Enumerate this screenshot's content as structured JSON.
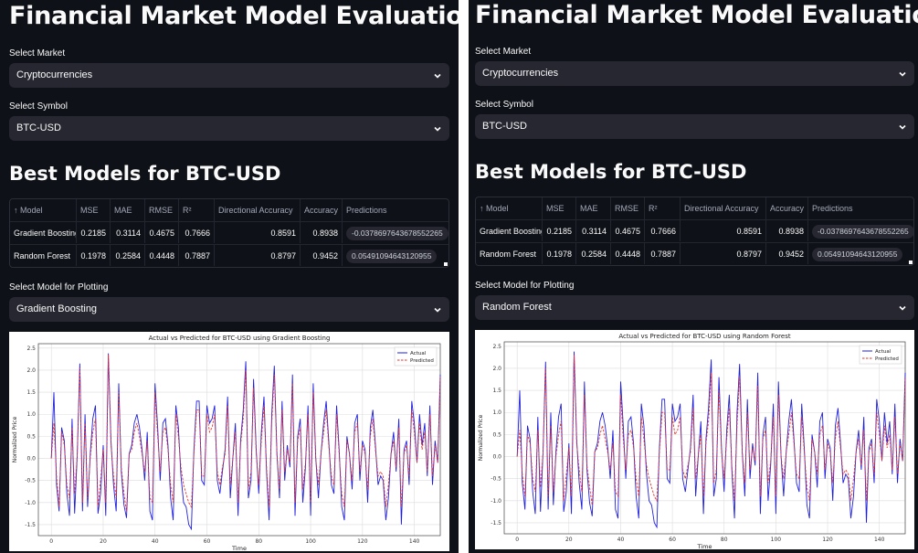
{
  "panels": [
    {
      "title": "Financial Market Model Evaluation",
      "market_label": "Select Market",
      "market_value": "Cryptocurrencies",
      "symbol_label": "Select Symbol",
      "symbol_value": "BTC-USD",
      "best_models_heading": "Best Models for BTC-USD",
      "table": {
        "sort_icon": "arrow-up",
        "columns": [
          "Model",
          "MSE",
          "MAE",
          "RMSE",
          "R²",
          "Directional Accuracy",
          "Accuracy",
          "Predictions"
        ],
        "rows": [
          [
            "Gradient Boosting",
            "0.2185",
            "0.3114",
            "0.4675",
            "0.7666",
            "0.8591",
            "0.8938",
            "-0.0378697643678552265"
          ],
          [
            "Random Forest",
            "0.1978",
            "0.2584",
            "0.4448",
            "0.7887",
            "0.8797",
            "0.9452",
            "0.05491094643120955"
          ]
        ]
      },
      "plot_model_label": "Select Model for Plotting",
      "plot_model_value": "Gradient Boosting",
      "chart_title": "Actual vs Predicted for BTC-USD using Gradient Boosting"
    },
    {
      "title": "Financial Market Model Evaluation",
      "market_label": "Select Market",
      "market_value": "Cryptocurrencies",
      "symbol_label": "Select Symbol",
      "symbol_value": "BTC-USD",
      "best_models_heading": "Best Models for BTC-USD",
      "table": {
        "sort_icon": "arrow-up",
        "columns": [
          "Model",
          "MSE",
          "MAE",
          "RMSE",
          "R²",
          "Directional Accuracy",
          "Accuracy",
          "Predictions"
        ],
        "rows": [
          [
            "Gradient Boosting",
            "0.2185",
            "0.3114",
            "0.4675",
            "0.7666",
            "0.8591",
            "0.8938",
            "-0.0378697643678552265"
          ],
          [
            "Random Forest",
            "0.1978",
            "0.2584",
            "0.4448",
            "0.7887",
            "0.8797",
            "0.9452",
            "0.05491094643120955"
          ]
        ]
      },
      "plot_model_label": "Select Model for Plotting",
      "plot_model_value": "Random Forest",
      "chart_title": "Actual vs Predicted for BTC-USD using Random Forest"
    }
  ],
  "colors": {
    "background": "#0e1117",
    "widget": "#262730",
    "actual": "#1f1fe0",
    "predicted": "#e8342d"
  },
  "chart_data": [
    {
      "type": "line",
      "title": "Actual vs Predicted for BTC-USD using Gradient Boosting",
      "xlabel": "Time",
      "ylabel": "Normalized Price",
      "xlim": [
        -5,
        150
      ],
      "ylim": [
        -1.75,
        2.6
      ],
      "xticks": [
        0,
        20,
        40,
        60,
        80,
        100,
        120,
        140
      ],
      "yticks": [
        -1.5,
        -1.0,
        -0.5,
        0.0,
        0.5,
        1.0,
        1.5,
        2.0,
        2.5
      ],
      "grid": true,
      "legend": "top-right",
      "series": [
        {
          "name": "Actual",
          "style": "solid",
          "values": [
            0.0,
            1.5,
            -0.6,
            -1.2,
            0.7,
            0.4,
            -0.8,
            -1.3,
            0.9,
            -1.25,
            0.1,
            2.15,
            -1.2,
            1.0,
            -1.1,
            0.1,
            0.9,
            1.2,
            -1.25,
            -0.8,
            0.3,
            -1.3,
            2.38,
            0.4,
            -0.6,
            -1.2,
            1.7,
            -0.3,
            -1.05,
            -1.35,
            0.1,
            0.3,
            0.8,
            1.0,
            0.7,
            0.2,
            -0.5,
            0.6,
            -1.2,
            -1.4,
            1.7,
            0.7,
            -0.5,
            0.8,
            0.9,
            0.3,
            -0.9,
            -1.4,
            1.2,
            0.7,
            -0.4,
            -1.0,
            -1.1,
            -1.5,
            -1.6,
            0.2,
            1.3,
            1.3,
            -0.5,
            -0.6,
            1.2,
            0.8,
            0.9,
            1.2,
            -0.5,
            -0.8,
            -0.3,
            0.2,
            1.4,
            -0.9,
            0.0,
            0.8,
            -1.3,
            0.4,
            1.1,
            2.2,
            -0.9,
            -0.5,
            1.8,
            0.2,
            -0.8,
            0.6,
            1.4,
            -0.3,
            -1.4,
            1.0,
            2.1,
            0.1,
            -0.9,
            1.3,
            -0.5,
            0.3,
            -0.2,
            1.9,
            -1.3,
            0.5,
            0.9,
            -1.0,
            -0.2,
            1.2,
            -1.3,
            1.7,
            0.0,
            -0.9,
            0.1,
            0.8,
            1.3,
            0.4,
            -0.6,
            -0.8,
            1.2,
            0.2,
            -1.1,
            -1.4,
            0.5,
            0.1,
            -0.7,
            0.8,
            1.0,
            -0.5,
            0.4,
            0.2,
            -1.0,
            0.7,
            1.1,
            0.3,
            -0.6,
            -0.4,
            -0.5,
            -1.4,
            -0.9,
            0.1,
            0.6,
            -0.3,
            0.9,
            -1.5,
            0.2,
            0.4,
            -0.6,
            1.3,
            0.8,
            -0.1,
            1.0,
            0.3,
            0.8,
            -0.4,
            1.2,
            -0.6,
            0.4,
            -0.1,
            1.9
          ]
        },
        {
          "name": "Predicted",
          "style": "dashed",
          "values": [
            0.0,
            0.8,
            -0.4,
            -1.1,
            0.6,
            0.3,
            -0.6,
            -0.9,
            0.7,
            -0.8,
            0.1,
            2.05,
            -1.0,
            0.8,
            -0.9,
            0.0,
            0.6,
            0.9,
            -1.1,
            -0.5,
            0.2,
            -1.0,
            2.35,
            0.3,
            -0.4,
            -0.9,
            1.5,
            -0.2,
            -0.8,
            -1.2,
            0.1,
            0.2,
            0.6,
            0.8,
            0.5,
            0.1,
            -0.3,
            0.4,
            -0.9,
            -1.0,
            1.5,
            0.5,
            -0.3,
            0.6,
            0.7,
            0.2,
            -0.6,
            -1.0,
            1.0,
            0.5,
            -0.2,
            -0.6,
            -0.8,
            -1.0,
            -1.1,
            0.1,
            1.1,
            1.1,
            -0.4,
            -0.4,
            1.0,
            0.6,
            0.7,
            1.0,
            -0.3,
            -0.6,
            -0.2,
            0.1,
            1.2,
            -0.6,
            0.0,
            0.6,
            -1.0,
            0.3,
            0.9,
            2.0,
            -0.7,
            -0.3,
            1.6,
            0.1,
            -0.6,
            0.4,
            1.2,
            -0.2,
            -1.1,
            0.8,
            1.9,
            0.1,
            -0.7,
            1.1,
            -0.3,
            0.2,
            -0.1,
            1.7,
            -1.0,
            0.4,
            0.7,
            -0.7,
            -0.1,
            1.0,
            -1.0,
            1.5,
            0.0,
            -0.6,
            0.1,
            0.6,
            1.1,
            0.3,
            -0.4,
            -0.6,
            1.0,
            0.1,
            -0.8,
            -1.1,
            0.4,
            0.1,
            -0.5,
            0.6,
            0.8,
            -0.3,
            0.3,
            0.1,
            -0.7,
            0.5,
            0.9,
            0.2,
            -0.4,
            -0.3,
            -0.4,
            -1.1,
            -0.6,
            0.1,
            0.4,
            -0.2,
            0.7,
            -1.1,
            0.1,
            0.3,
            -0.4,
            1.1,
            0.6,
            -0.1,
            0.8,
            0.2,
            0.6,
            -0.3,
            1.0,
            -0.4,
            0.3,
            -0.1,
            1.85
          ]
        }
      ]
    },
    {
      "type": "line",
      "title": "Actual vs Predicted for BTC-USD using Random Forest",
      "xlabel": "Time",
      "ylabel": "Normalized Price",
      "xlim": [
        -5,
        150
      ],
      "ylim": [
        -1.75,
        2.6
      ],
      "xticks": [
        0,
        20,
        40,
        60,
        80,
        100,
        120,
        140
      ],
      "yticks": [
        -1.5,
        -1.0,
        -0.5,
        0.0,
        0.5,
        1.0,
        1.5,
        2.0,
        2.5
      ],
      "grid": true,
      "legend": "top-right",
      "series": [
        {
          "name": "Actual",
          "style": "solid",
          "values": [
            0.0,
            1.5,
            -0.6,
            -1.2,
            0.7,
            0.4,
            -0.8,
            -1.3,
            0.9,
            -1.25,
            0.1,
            2.15,
            -1.2,
            1.0,
            -1.1,
            0.1,
            0.9,
            1.2,
            -1.25,
            -0.8,
            0.3,
            -1.3,
            2.38,
            0.4,
            -0.6,
            -1.2,
            1.7,
            -0.3,
            -1.05,
            -1.35,
            0.1,
            0.3,
            0.8,
            1.0,
            0.7,
            0.2,
            -0.5,
            0.6,
            -1.2,
            -1.4,
            1.7,
            0.7,
            -0.5,
            0.8,
            0.9,
            0.3,
            -0.9,
            -1.4,
            1.2,
            0.7,
            -0.4,
            -1.0,
            -1.1,
            -1.5,
            -1.6,
            0.2,
            1.3,
            1.3,
            -0.5,
            -0.6,
            1.2,
            0.8,
            0.9,
            1.2,
            -0.5,
            -0.8,
            -0.3,
            0.2,
            1.4,
            -0.9,
            0.0,
            0.8,
            -1.3,
            0.4,
            1.1,
            2.2,
            -0.9,
            -0.5,
            1.8,
            0.2,
            -0.8,
            0.6,
            1.4,
            -0.3,
            -1.4,
            1.0,
            2.1,
            0.1,
            -0.9,
            1.3,
            -0.5,
            0.3,
            -0.2,
            1.9,
            -1.3,
            0.5,
            0.9,
            -1.0,
            -0.2,
            1.2,
            -1.3,
            1.7,
            0.0,
            -0.9,
            0.1,
            0.8,
            1.3,
            0.4,
            -0.6,
            -0.8,
            1.2,
            0.2,
            -1.1,
            -1.4,
            0.5,
            0.1,
            -0.7,
            0.8,
            1.0,
            -0.5,
            0.4,
            0.2,
            -1.0,
            0.7,
            1.1,
            0.3,
            -0.6,
            -0.4,
            -0.5,
            -1.4,
            -0.9,
            0.1,
            0.6,
            -0.3,
            0.9,
            -1.5,
            0.2,
            0.4,
            -0.6,
            1.3,
            0.8,
            -0.1,
            1.0,
            0.3,
            0.8,
            -0.4,
            1.2,
            -0.6,
            0.4,
            -0.1,
            1.9
          ]
        },
        {
          "name": "Predicted",
          "style": "dashed",
          "values": [
            0.0,
            0.6,
            -0.4,
            -0.9,
            0.5,
            0.3,
            -0.5,
            -0.8,
            0.6,
            -0.7,
            0.1,
            2.0,
            -0.9,
            0.7,
            -0.8,
            0.0,
            0.5,
            0.8,
            -1.0,
            -0.4,
            0.2,
            -0.9,
            2.3,
            0.3,
            -0.3,
            -0.8,
            1.4,
            -0.2,
            -0.7,
            -1.1,
            0.1,
            0.2,
            0.5,
            0.7,
            0.4,
            0.1,
            -0.3,
            0.3,
            -0.8,
            -0.9,
            1.4,
            0.4,
            -0.3,
            0.5,
            0.6,
            0.2,
            -0.5,
            -0.9,
            0.9,
            0.4,
            -0.2,
            -0.5,
            -0.7,
            -0.9,
            -1.0,
            0.1,
            1.0,
            1.0,
            -0.3,
            -0.3,
            0.9,
            0.5,
            0.6,
            0.9,
            -0.3,
            -0.5,
            -0.2,
            0.1,
            1.1,
            -0.5,
            0.0,
            0.5,
            -0.9,
            0.3,
            0.8,
            1.9,
            -0.6,
            -0.3,
            1.5,
            0.1,
            -0.5,
            0.4,
            1.1,
            -0.2,
            -1.0,
            0.7,
            1.8,
            0.1,
            -0.6,
            1.0,
            -0.3,
            0.2,
            -0.1,
            1.6,
            -0.9,
            0.4,
            0.6,
            -0.6,
            -0.1,
            0.9,
            -0.9,
            1.4,
            0.0,
            -0.5,
            0.1,
            0.5,
            1.0,
            0.3,
            -0.4,
            -0.5,
            0.9,
            0.1,
            -0.7,
            -1.0,
            0.4,
            0.1,
            -0.4,
            0.5,
            0.7,
            -0.3,
            0.3,
            0.1,
            -0.6,
            0.4,
            0.8,
            0.2,
            -0.4,
            -0.3,
            -0.4,
            -1.0,
            -0.5,
            0.1,
            0.4,
            -0.2,
            0.6,
            -1.0,
            0.1,
            0.3,
            -0.4,
            1.0,
            0.5,
            -0.1,
            0.7,
            0.2,
            0.5,
            -0.3,
            0.9,
            -0.4,
            0.3,
            -0.1,
            1.8
          ]
        }
      ]
    }
  ]
}
